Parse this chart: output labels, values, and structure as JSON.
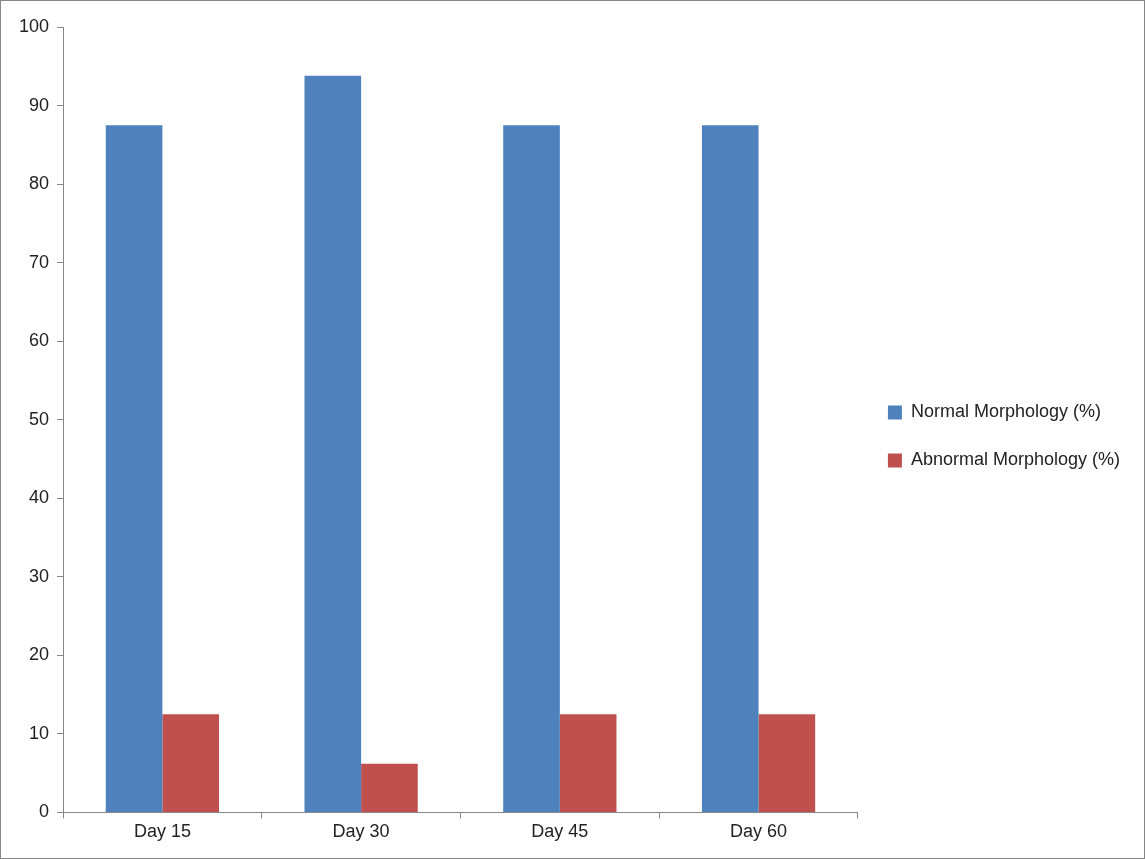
{
  "chart_data": {
    "type": "bar",
    "categories": [
      "Day 15",
      "Day 30",
      "Day 45",
      "Day 60"
    ],
    "series": [
      {
        "name": "Normal Morphology (%)",
        "color": "#4f81bd",
        "values": [
          87.5,
          93.8,
          87.5,
          87.5
        ]
      },
      {
        "name": "Abnormal Morphology (%)",
        "color": "#c0504d",
        "values": [
          12.5,
          6.2,
          12.5,
          12.5
        ]
      }
    ],
    "ylim": [
      0,
      100
    ],
    "yticks": [
      0,
      10,
      20,
      30,
      40,
      50,
      60,
      70,
      80,
      90,
      100
    ],
    "grid": false,
    "legend": "right"
  }
}
